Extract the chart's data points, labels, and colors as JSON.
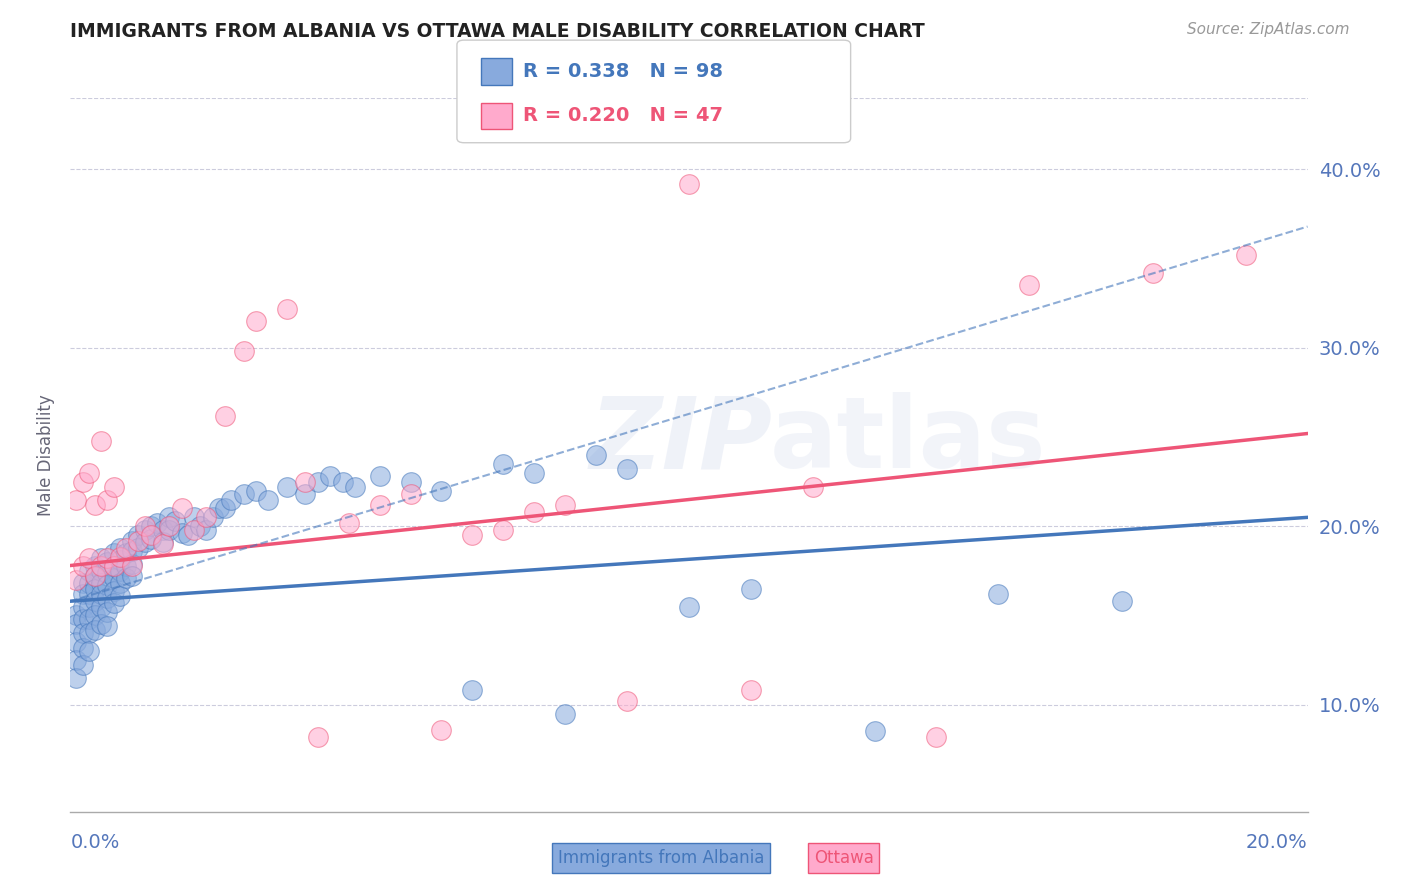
{
  "title": "IMMIGRANTS FROM ALBANIA VS OTTAWA MALE DISABILITY CORRELATION CHART",
  "source": "Source: ZipAtlas.com",
  "ylabel": "Male Disability",
  "legend_entries": [
    "Immigrants from Albania",
    "Ottawa"
  ],
  "legend_r": [
    "R = 0.338",
    "R = 0.220"
  ],
  "legend_n": [
    "N = 98",
    "N = 47"
  ],
  "xlim": [
    0.0,
    0.2
  ],
  "ylim": [
    0.04,
    0.44
  ],
  "yticks": [
    0.1,
    0.2,
    0.3,
    0.4
  ],
  "ytick_labels": [
    "10.0%",
    "20.0%",
    "30.0%",
    "40.0%"
  ],
  "blue_color": "#4477BB",
  "pink_color": "#EE5577",
  "blue_dot_color": "#88AADD",
  "pink_dot_color": "#FFAACC",
  "blue_scatter_x": [
    0.001,
    0.001,
    0.001,
    0.001,
    0.001,
    0.002,
    0.002,
    0.002,
    0.002,
    0.002,
    0.002,
    0.002,
    0.003,
    0.003,
    0.003,
    0.003,
    0.003,
    0.003,
    0.003,
    0.004,
    0.004,
    0.004,
    0.004,
    0.004,
    0.004,
    0.005,
    0.005,
    0.005,
    0.005,
    0.005,
    0.005,
    0.006,
    0.006,
    0.006,
    0.006,
    0.006,
    0.006,
    0.007,
    0.007,
    0.007,
    0.007,
    0.007,
    0.008,
    0.008,
    0.008,
    0.008,
    0.008,
    0.009,
    0.009,
    0.009,
    0.01,
    0.01,
    0.01,
    0.01,
    0.011,
    0.011,
    0.012,
    0.012,
    0.013,
    0.013,
    0.014,
    0.015,
    0.015,
    0.016,
    0.016,
    0.017,
    0.018,
    0.019,
    0.02,
    0.021,
    0.022,
    0.023,
    0.024,
    0.025,
    0.026,
    0.028,
    0.03,
    0.032,
    0.035,
    0.038,
    0.04,
    0.042,
    0.044,
    0.046,
    0.05,
    0.055,
    0.06,
    0.065,
    0.07,
    0.075,
    0.08,
    0.085,
    0.09,
    0.1,
    0.11,
    0.13,
    0.15,
    0.17
  ],
  "blue_scatter_y": [
    0.15,
    0.145,
    0.135,
    0.125,
    0.115,
    0.168,
    0.162,
    0.155,
    0.148,
    0.14,
    0.132,
    0.122,
    0.175,
    0.168,
    0.162,
    0.155,
    0.148,
    0.14,
    0.13,
    0.178,
    0.172,
    0.165,
    0.158,
    0.15,
    0.142,
    0.182,
    0.175,
    0.168,
    0.162,
    0.155,
    0.145,
    0.18,
    0.174,
    0.167,
    0.16,
    0.152,
    0.144,
    0.185,
    0.178,
    0.171,
    0.164,
    0.157,
    0.188,
    0.181,
    0.175,
    0.168,
    0.161,
    0.185,
    0.178,
    0.171,
    0.192,
    0.186,
    0.179,
    0.172,
    0.195,
    0.188,
    0.198,
    0.191,
    0.2,
    0.193,
    0.202,
    0.198,
    0.191,
    0.205,
    0.198,
    0.203,
    0.196,
    0.195,
    0.205,
    0.2,
    0.198,
    0.205,
    0.21,
    0.21,
    0.215,
    0.218,
    0.22,
    0.215,
    0.222,
    0.218,
    0.225,
    0.228,
    0.225,
    0.222,
    0.228,
    0.225,
    0.22,
    0.108,
    0.235,
    0.23,
    0.095,
    0.24,
    0.232,
    0.155,
    0.165,
    0.085,
    0.162,
    0.158
  ],
  "pink_scatter_x": [
    0.001,
    0.001,
    0.002,
    0.002,
    0.003,
    0.003,
    0.004,
    0.004,
    0.005,
    0.005,
    0.006,
    0.006,
    0.007,
    0.007,
    0.008,
    0.009,
    0.01,
    0.011,
    0.012,
    0.013,
    0.015,
    0.016,
    0.018,
    0.02,
    0.022,
    0.025,
    0.028,
    0.03,
    0.035,
    0.038,
    0.04,
    0.045,
    0.05,
    0.055,
    0.06,
    0.065,
    0.07,
    0.075,
    0.08,
    0.09,
    0.1,
    0.11,
    0.12,
    0.14,
    0.155,
    0.175,
    0.19
  ],
  "pink_scatter_y": [
    0.17,
    0.215,
    0.178,
    0.225,
    0.182,
    0.23,
    0.172,
    0.212,
    0.178,
    0.248,
    0.182,
    0.215,
    0.178,
    0.222,
    0.183,
    0.188,
    0.178,
    0.192,
    0.2,
    0.195,
    0.19,
    0.2,
    0.21,
    0.198,
    0.205,
    0.262,
    0.298,
    0.315,
    0.322,
    0.225,
    0.082,
    0.202,
    0.212,
    0.218,
    0.086,
    0.195,
    0.198,
    0.208,
    0.212,
    0.102,
    0.392,
    0.108,
    0.222,
    0.082,
    0.335,
    0.342,
    0.352
  ],
  "blue_line_x": [
    0.0,
    0.2
  ],
  "blue_line_y": [
    0.158,
    0.205
  ],
  "pink_line_x": [
    0.0,
    0.2
  ],
  "pink_line_y": [
    0.178,
    0.252
  ],
  "dashed_line_x": [
    0.0,
    0.2
  ],
  "dashed_line_y": [
    0.158,
    0.368
  ],
  "bg_color": "#FFFFFF",
  "grid_color": "#CCCCDD",
  "tick_color": "#5577BB",
  "title_color": "#222222"
}
